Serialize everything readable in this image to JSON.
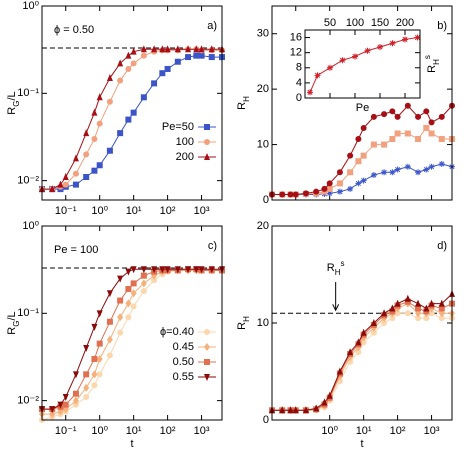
{
  "chart_data": [
    {
      "type": "line",
      "panel": "a)",
      "note": "ϕ = 0.50",
      "ylabel": "RG/L",
      "xlog": true,
      "ylog": true,
      "xlim": [
        0.02,
        4000
      ],
      "ylim": [
        0.006,
        1
      ],
      "xticks": [
        {
          "value": 0.1,
          "label": "10⁻¹"
        },
        {
          "value": 1,
          "label": "10⁰"
        },
        {
          "value": 10,
          "label": "10¹"
        },
        {
          "value": 100,
          "label": "10²"
        },
        {
          "value": 1000,
          "label": "10³"
        }
      ],
      "yticks": [
        {
          "value": 0.01,
          "label": "10⁻²"
        },
        {
          "value": 0.1,
          "label": "10⁻¹"
        },
        {
          "value": 1,
          "label": "10⁰"
        }
      ],
      "hline": 0.33,
      "legend": "lower right",
      "x": [
        0.02,
        0.04,
        0.07,
        0.1,
        0.2,
        0.4,
        0.7,
        1,
        2,
        4,
        7,
        10,
        20,
        40,
        70,
        100,
        200,
        400,
        700,
        1000,
        2000,
        4000
      ],
      "series": [
        {
          "name": "Pe=50",
          "color": "#3b55c8",
          "marker": "square",
          "values": [
            0.008,
            0.008,
            0.008,
            0.0085,
            0.009,
            0.011,
            0.013,
            0.015,
            0.022,
            0.035,
            0.05,
            0.06,
            0.09,
            0.13,
            0.17,
            0.19,
            0.23,
            0.26,
            0.27,
            0.27,
            0.26,
            0.26
          ]
        },
        {
          "name": "100",
          "color": "#f2a07e",
          "marker": "circle",
          "values": [
            0.008,
            0.008,
            0.0085,
            0.009,
            0.012,
            0.02,
            0.03,
            0.045,
            0.08,
            0.14,
            0.19,
            0.22,
            0.27,
            0.3,
            0.31,
            0.31,
            0.31,
            0.32,
            0.32,
            0.31,
            0.31,
            0.31
          ]
        },
        {
          "name": "200",
          "color": "#a50f15",
          "marker": "triangle",
          "values": [
            0.008,
            0.008,
            0.009,
            0.011,
            0.018,
            0.035,
            0.06,
            0.09,
            0.15,
            0.22,
            0.27,
            0.3,
            0.32,
            0.32,
            0.32,
            0.32,
            0.32,
            0.32,
            0.32,
            0.32,
            0.32,
            0.32
          ]
        }
      ]
    },
    {
      "type": "line",
      "panel": "b)",
      "ylabel": "RH",
      "xlog": true,
      "ylog": false,
      "show_xtick_labels": false,
      "xlim": [
        0.02,
        4000
      ],
      "ylim": [
        0,
        35
      ],
      "xticks": [
        0.1,
        1,
        10,
        100,
        1000
      ],
      "yticks": [
        0,
        10,
        20,
        30
      ],
      "x": [
        0.02,
        0.04,
        0.07,
        0.1,
        0.2,
        0.4,
        0.7,
        1,
        2,
        4,
        7,
        10,
        20,
        40,
        70,
        100,
        200,
        400,
        700,
        1000,
        2000,
        4000
      ],
      "series": [
        {
          "color": "#3b55c8",
          "marker": "star",
          "values": [
            1,
            1,
            1,
            1,
            1,
            1,
            1.1,
            1.2,
            1.5,
            2,
            3,
            3.5,
            4.5,
            5,
            5,
            5.5,
            6,
            5,
            5.5,
            6,
            6.5,
            6
          ]
        },
        {
          "color": "#f2a07e",
          "marker": "square",
          "values": [
            1,
            1,
            1,
            1,
            1.1,
            1.2,
            1.5,
            2,
            3,
            5,
            7,
            8,
            10,
            10,
            11,
            12,
            12,
            11,
            13,
            12,
            11,
            11
          ]
        },
        {
          "color": "#a50f15",
          "marker": "circle",
          "values": [
            1,
            1,
            1,
            1,
            1.2,
            1.5,
            2,
            3,
            5,
            8,
            11,
            13,
            15,
            15.5,
            16,
            15,
            17,
            15,
            16,
            14,
            15,
            17
          ]
        }
      ]
    },
    {
      "type": "line",
      "inset": true,
      "xlabel": "Pe",
      "ylabel": "RHs",
      "xlog": false,
      "ylog": false,
      "xlim": [
        0,
        230
      ],
      "ylim": [
        0,
        18
      ],
      "xticks": [
        50,
        100,
        150,
        200
      ],
      "yticks": [
        0,
        4,
        8,
        12,
        16
      ],
      "x": [
        10,
        25,
        50,
        75,
        100,
        125,
        150,
        175,
        200,
        225
      ],
      "series": [
        {
          "color": "#d0202a",
          "marker": "star",
          "values": [
            1.5,
            6,
            8,
            10,
            11,
            12.5,
            13.5,
            14.5,
            15.5,
            16
          ]
        }
      ]
    },
    {
      "type": "line",
      "panel": "c)",
      "note": "Pe = 100",
      "ylabel": "RG/L",
      "xlabel": "t",
      "xlog": true,
      "ylog": true,
      "xlim": [
        0.02,
        4000
      ],
      "ylim": [
        0.006,
        1
      ],
      "xticks": [
        {
          "value": 0.1,
          "label": "10⁻¹"
        },
        {
          "value": 1,
          "label": "10⁰"
        },
        {
          "value": 10,
          "label": "10¹"
        },
        {
          "value": 100,
          "label": "10²"
        },
        {
          "value": 1000,
          "label": "10³"
        }
      ],
      "yticks": [
        {
          "value": 0.01,
          "label": "10⁻²"
        },
        {
          "value": 0.1,
          "label": "10⁻¹"
        },
        {
          "value": 1,
          "label": "10⁰"
        }
      ],
      "hline": 0.33,
      "legend": "lower right",
      "x": [
        0.02,
        0.04,
        0.07,
        0.1,
        0.2,
        0.4,
        0.7,
        1,
        2,
        4,
        7,
        10,
        20,
        40,
        70,
        100,
        200,
        400,
        700,
        1000,
        2000,
        4000
      ],
      "series": [
        {
          "name": "ϕ=0.40",
          "color": "#fcd7ae",
          "marker": "circle",
          "values": [
            0.006,
            0.0065,
            0.007,
            0.0075,
            0.009,
            0.011,
            0.015,
            0.02,
            0.033,
            0.06,
            0.09,
            0.12,
            0.18,
            0.24,
            0.28,
            0.3,
            0.31,
            0.31,
            0.31,
            0.31,
            0.31,
            0.31
          ]
        },
        {
          "name": "0.45",
          "color": "#f5b07c",
          "marker": "diamond",
          "values": [
            0.007,
            0.007,
            0.0075,
            0.008,
            0.01,
            0.014,
            0.02,
            0.03,
            0.05,
            0.09,
            0.13,
            0.17,
            0.22,
            0.27,
            0.3,
            0.31,
            0.31,
            0.31,
            0.31,
            0.31,
            0.31,
            0.31
          ]
        },
        {
          "name": "0.50",
          "color": "#e07050",
          "marker": "square",
          "values": [
            0.008,
            0.008,
            0.0085,
            0.009,
            0.012,
            0.02,
            0.03,
            0.045,
            0.08,
            0.14,
            0.19,
            0.22,
            0.27,
            0.3,
            0.31,
            0.31,
            0.31,
            0.32,
            0.32,
            0.31,
            0.31,
            0.31
          ]
        },
        {
          "name": "0.55",
          "color": "#8b0a0a",
          "marker": "tridown",
          "values": [
            0.008,
            0.008,
            0.009,
            0.011,
            0.02,
            0.04,
            0.07,
            0.1,
            0.17,
            0.25,
            0.3,
            0.32,
            0.32,
            0.32,
            0.32,
            0.32,
            0.32,
            0.32,
            0.32,
            0.32,
            0.32,
            0.32
          ]
        }
      ]
    },
    {
      "type": "line",
      "panel": "d)",
      "note": "RHs",
      "note_x": 1.5,
      "ylabel": "RH",
      "xlabel": "t",
      "xlog": true,
      "ylog": false,
      "xlim": [
        0.02,
        4000
      ],
      "ylim": [
        0,
        20
      ],
      "xticks": [
        {
          "value": 1,
          "label": "10⁰"
        },
        {
          "value": 10,
          "label": "10¹"
        },
        {
          "value": 100,
          "label": "10²"
        },
        {
          "value": 1000,
          "label": "10³"
        }
      ],
      "yticks": [
        0,
        10,
        20
      ],
      "hline": 11,
      "x": [
        0.02,
        0.04,
        0.07,
        0.1,
        0.2,
        0.4,
        0.7,
        1,
        2,
        4,
        7,
        10,
        20,
        40,
        70,
        100,
        200,
        400,
        700,
        1000,
        2000,
        4000
      ],
      "series": [
        {
          "color": "#fcd7ae",
          "marker": "circle",
          "values": [
            1,
            1,
            1,
            1,
            1,
            1,
            1.3,
            2,
            4,
            6,
            7,
            8,
            9,
            10,
            10.5,
            11,
            11,
            10.5,
            10.5,
            11,
            10.5,
            10.5
          ]
        },
        {
          "color": "#f5b07c",
          "marker": "diamond",
          "values": [
            1,
            1,
            1,
            1,
            1,
            1.1,
            1.5,
            2.2,
            4.5,
            6.5,
            7.5,
            8.5,
            9.5,
            10.5,
            11,
            11.5,
            12,
            11,
            11,
            11.5,
            11,
            11
          ]
        },
        {
          "color": "#e07050",
          "marker": "square",
          "values": [
            1,
            1,
            1,
            1,
            1,
            1.1,
            1.6,
            2.3,
            4.8,
            6.8,
            7.8,
            8.8,
            9.8,
            10.8,
            11.2,
            11.8,
            12.2,
            11.5,
            11.2,
            11.8,
            11.5,
            12
          ]
        },
        {
          "color": "#8b0a0a",
          "marker": "triangle",
          "values": [
            1,
            1,
            1,
            1,
            1,
            1.2,
            1.8,
            2.5,
            5,
            7,
            8,
            9,
            10,
            11,
            11.5,
            12,
            12.5,
            12,
            11.5,
            12,
            12,
            13
          ]
        }
      ]
    }
  ]
}
